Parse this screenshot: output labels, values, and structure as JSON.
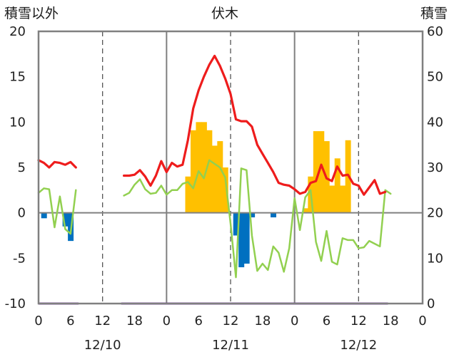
{
  "chart_data": {
    "type": "bar+line",
    "title": "伏木",
    "left_axis_label": "積雪以外",
    "right_axis_label": "積雪",
    "left_ylim": [
      -10,
      20
    ],
    "left_ticks": [
      "-10",
      "-5",
      "0",
      "5",
      "10",
      "15",
      "20"
    ],
    "right_ylim": [
      0,
      60
    ],
    "right_ticks": [
      "0",
      "10",
      "20",
      "30",
      "40",
      "50",
      "60"
    ],
    "x_tick_labels": [
      "0",
      "6",
      "12",
      "18",
      "0",
      "6",
      "12",
      "18",
      "0",
      "6",
      "12",
      "18",
      "0"
    ],
    "date_labels": [
      "12/10",
      "12/11",
      "12/12"
    ],
    "grid": "dashed vertical lines every 12 hours",
    "colors": {
      "red_series": "#ee1c1c",
      "green_series": "#92d050",
      "bar_positive": "#ffc000",
      "bar_negative": "#0070c0",
      "purple_series": "#7030a0",
      "frame": "#808080"
    },
    "series_red": [
      [
        0,
        5.8
      ],
      [
        1,
        5.5
      ],
      [
        2,
        5.0
      ],
      [
        3,
        5.6
      ],
      [
        4,
        5.5
      ],
      [
        5,
        5.3
      ],
      [
        6,
        5.6
      ],
      [
        7,
        5.0
      ],
      [
        null,
        null
      ],
      [
        16,
        4.1
      ],
      [
        17,
        4.1
      ],
      [
        18,
        4.2
      ],
      [
        19,
        4.7
      ],
      [
        20,
        4.0
      ],
      [
        21,
        3.0
      ],
      [
        22,
        4.1
      ],
      [
        23,
        5.7
      ],
      [
        24,
        4.5
      ],
      [
        25,
        5.5
      ],
      [
        26,
        5.1
      ],
      [
        27,
        5.3
      ],
      [
        28,
        8.0
      ],
      [
        29,
        11.5
      ],
      [
        30,
        13.5
      ],
      [
        31,
        15.0
      ],
      [
        32,
        16.3
      ],
      [
        33,
        17.3
      ],
      [
        34,
        16.2
      ],
      [
        35,
        14.8
      ],
      [
        36,
        13.1
      ],
      [
        37,
        10.3
      ],
      [
        38,
        10.1
      ],
      [
        39,
        10.1
      ],
      [
        40,
        9.5
      ],
      [
        41,
        7.5
      ],
      [
        42,
        6.5
      ],
      [
        43,
        5.5
      ],
      [
        44,
        4.5
      ],
      [
        45,
        3.3
      ],
      [
        46,
        3.1
      ],
      [
        47,
        3.0
      ],
      [
        48,
        2.6
      ],
      [
        49,
        2.1
      ],
      [
        50,
        2.3
      ],
      [
        51,
        3.3
      ],
      [
        52,
        3.5
      ],
      [
        53,
        5.3
      ],
      [
        54,
        3.8
      ],
      [
        55,
        3.5
      ],
      [
        56,
        5.1
      ],
      [
        57,
        4.1
      ],
      [
        58,
        4.2
      ],
      [
        59,
        3.2
      ],
      [
        60,
        3.0
      ],
      [
        61,
        2.0
      ],
      [
        62,
        2.8
      ],
      [
        63,
        3.6
      ],
      [
        64,
        2.1
      ],
      [
        65,
        2.3
      ]
    ],
    "series_green": [
      [
        0,
        2.2
      ],
      [
        1,
        2.7
      ],
      [
        2,
        2.6
      ],
      [
        3,
        -1.6
      ],
      [
        4,
        1.8
      ],
      [
        5,
        -1.8
      ],
      [
        6,
        -2.3
      ],
      [
        7,
        2.5
      ],
      [
        null,
        null
      ],
      [
        16,
        1.9
      ],
      [
        17,
        2.2
      ],
      [
        18,
        3.1
      ],
      [
        19,
        3.7
      ],
      [
        20,
        2.6
      ],
      [
        21,
        2.1
      ],
      [
        22,
        2.2
      ],
      [
        23,
        3.0
      ],
      [
        24,
        2.0
      ],
      [
        25,
        2.5
      ],
      [
        26,
        2.5
      ],
      [
        27,
        3.2
      ],
      [
        28,
        3.4
      ],
      [
        29,
        2.7
      ],
      [
        30,
        4.6
      ],
      [
        31,
        3.8
      ],
      [
        32,
        5.8
      ],
      [
        33,
        5.4
      ],
      [
        34,
        5.0
      ],
      [
        35,
        3.9
      ],
      [
        36,
        -1.2
      ],
      [
        37,
        -7.1
      ],
      [
        38,
        4.9
      ],
      [
        39,
        4.7
      ],
      [
        40,
        -2.5
      ],
      [
        41,
        -6.4
      ],
      [
        42,
        -5.6
      ],
      [
        43,
        -6.3
      ],
      [
        44,
        -3.7
      ],
      [
        45,
        -4.4
      ],
      [
        46,
        -6.5
      ],
      [
        47,
        -3.9
      ],
      [
        48,
        1.6
      ],
      [
        49,
        -1.9
      ],
      [
        50,
        1.7
      ],
      [
        51,
        2.5
      ],
      [
        52,
        -3.2
      ],
      [
        53,
        -5.3
      ],
      [
        54,
        -2.0
      ],
      [
        55,
        -5.4
      ],
      [
        56,
        -5.7
      ],
      [
        57,
        -2.8
      ],
      [
        58,
        -3.0
      ],
      [
        59,
        -3.0
      ],
      [
        60,
        -3.9
      ],
      [
        61,
        -3.8
      ],
      [
        62,
        -3.1
      ],
      [
        63,
        -3.4
      ],
      [
        64,
        -3.7
      ],
      [
        65,
        2.5
      ],
      [
        66,
        2.1
      ]
    ],
    "series_bars": [
      [
        1,
        -0.6
      ],
      [
        5,
        -1.5
      ],
      [
        6,
        -3.1
      ],
      [
        28,
        4.0
      ],
      [
        29,
        9.1
      ],
      [
        30,
        10.0
      ],
      [
        31,
        10.0
      ],
      [
        32,
        9.1
      ],
      [
        33,
        7.4
      ],
      [
        34,
        7.9
      ],
      [
        35,
        5.0
      ],
      [
        37,
        -2.5
      ],
      [
        38,
        -6.0
      ],
      [
        39,
        -5.6
      ],
      [
        40,
        -0.5
      ],
      [
        44,
        -0.5
      ],
      [
        50,
        0.5
      ],
      [
        51,
        4.0
      ],
      [
        52,
        9.0
      ],
      [
        53,
        9.0
      ],
      [
        54,
        7.9
      ],
      [
        55,
        3.0
      ],
      [
        56,
        6.0
      ],
      [
        57,
        3.0
      ],
      [
        58,
        8.0
      ]
    ],
    "series_purple_level": -10
  }
}
